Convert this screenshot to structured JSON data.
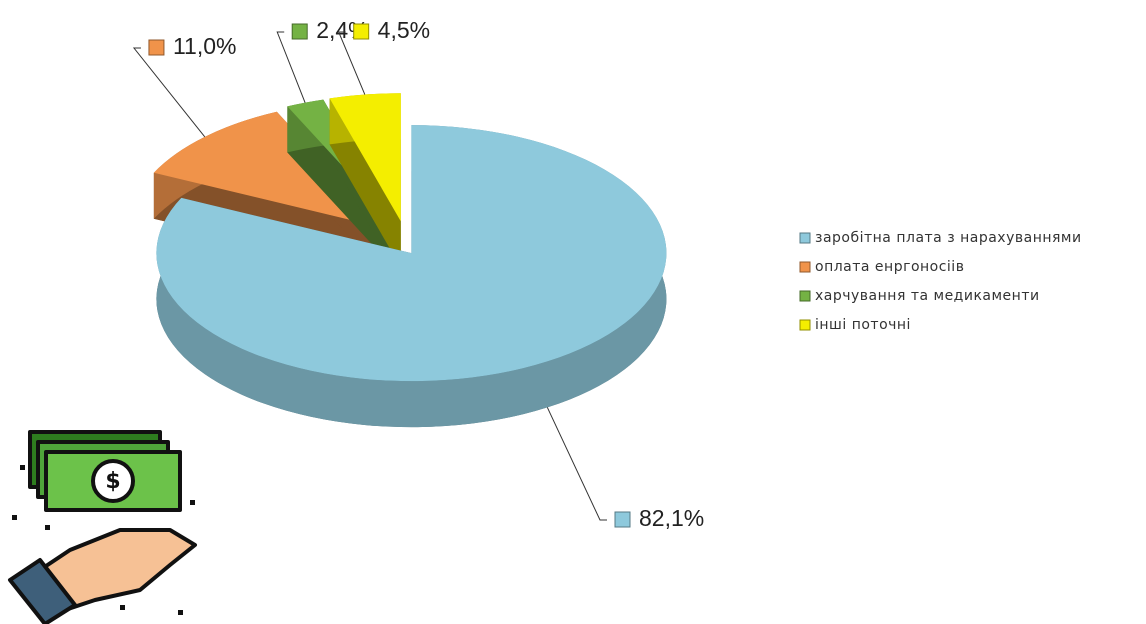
{
  "chart_data": {
    "type": "pie",
    "categories": [
      "заробітна плата з нарахуваннями",
      "оплата енргоносіів",
      "харчування та медикаменти",
      "інші поточні"
    ],
    "values": [
      82.1,
      11.0,
      2.4,
      4.5
    ],
    "value_labels": [
      "82,1%",
      "11,0%",
      "2,4%",
      "4,5%"
    ],
    "colors": [
      "#8ec9dc",
      "#f0934a",
      "#74b244",
      "#f4ee00"
    ],
    "legend": "right"
  }
}
